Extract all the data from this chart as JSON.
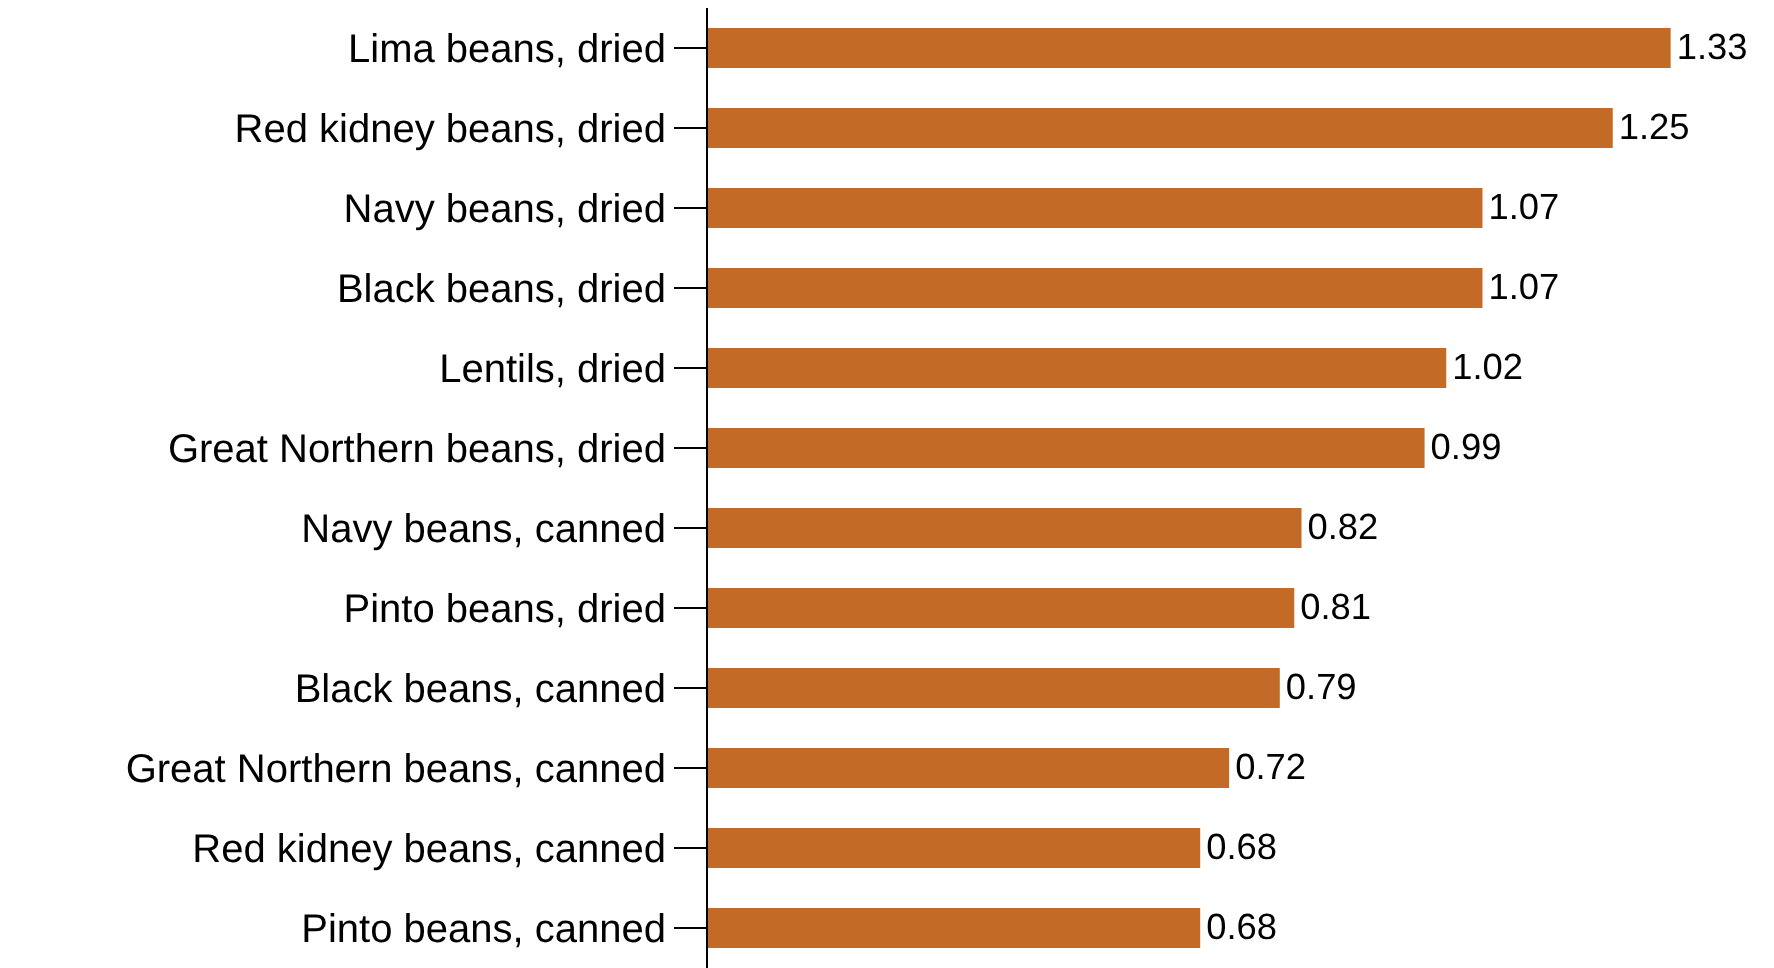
{
  "chart_data": {
    "type": "bar",
    "orientation": "horizontal",
    "categories": [
      "Lima beans, dried",
      "Red kidney beans, dried",
      "Navy beans, dried",
      "Black beans, dried",
      "Lentils, dried",
      "Great Northern beans, dried",
      "Navy beans, canned",
      "Pinto beans, dried",
      "Black beans, canned",
      "Great Northern beans, canned",
      "Red kidney beans, canned",
      "Pinto beans, canned"
    ],
    "values": [
      1.33,
      1.25,
      1.07,
      1.07,
      1.02,
      0.99,
      0.82,
      0.81,
      0.79,
      0.72,
      0.68,
      0.68
    ],
    "color": "#c46a27",
    "data_labels": true,
    "xlim": [
      0,
      1.47
    ],
    "tick_labels": "y"
  }
}
